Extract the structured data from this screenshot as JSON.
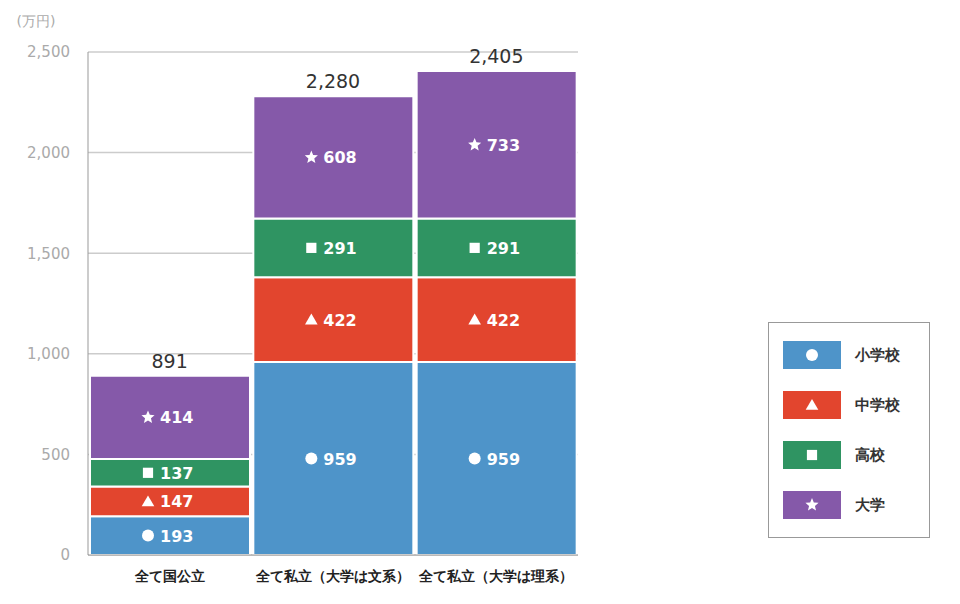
{
  "chart_data": {
    "type": "bar",
    "stacked": true,
    "data_labels": true,
    "grid": true,
    "legend": "lower right",
    "y_label": "(万円)",
    "categories": [
      "全て国公立",
      "全て私立（大学は文系）",
      "全て私立（大学は理系）"
    ],
    "series": [
      {
        "name": "小学校",
        "color": "#4e94c9",
        "marker": "circle",
        "values": [
          193,
          959,
          959
        ]
      },
      {
        "name": "中学校",
        "color": "#e2452e",
        "marker": "triangle",
        "values": [
          147,
          422,
          422
        ]
      },
      {
        "name": "高校",
        "color": "#2f9462",
        "marker": "square",
        "values": [
          137,
          291,
          291
        ]
      },
      {
        "name": "大学",
        "color": "#8559a9",
        "marker": "star",
        "values": [
          414,
          608,
          733
        ]
      }
    ],
    "totals": [
      891,
      2280,
      2405
    ],
    "total_labels": [
      "891",
      "2,280",
      "2,405"
    ],
    "ylim": [
      0,
      2500
    ],
    "yticks": [
      0,
      500,
      {
        "value": 1000,
        "label": "1,000"
      },
      {
        "value": 1500,
        "label": "1,500"
      },
      {
        "value": 2000,
        "label": "2,000"
      },
      {
        "value": 2500,
        "label": "2,500"
      }
    ]
  }
}
